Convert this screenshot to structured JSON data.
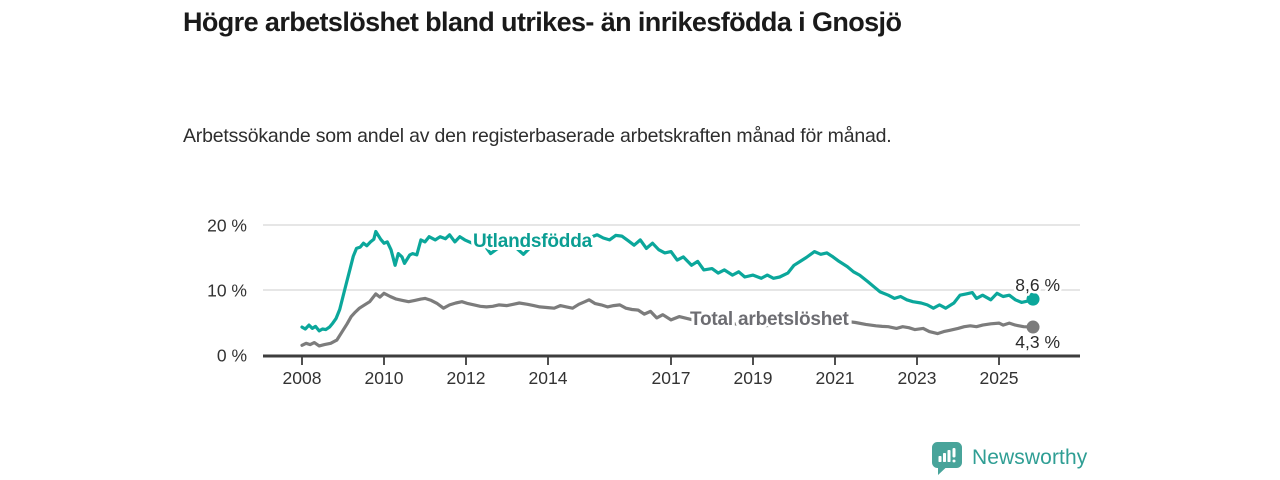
{
  "header": {
    "title": "Högre arbetslöshet bland utrikes- än inrikesfödda i Gnosjö",
    "subtitle": "Arbetssökande som andel av den registerbaserade arbetskraften månad för månad."
  },
  "chart_data": {
    "type": "line",
    "title": "Högre arbetslöshet bland utrikes- än inrikesfödda i Gnosjö",
    "subtitle": "Arbetssökande som andel av den registerbaserade arbetskraften månad för månad.",
    "x_axis": {
      "unit": "year-month",
      "range": [
        2007.05,
        2026.95
      ],
      "ticks": [
        2008,
        2010,
        2012,
        2014,
        2017,
        2019,
        2021,
        2023,
        2025
      ],
      "tick_labels": [
        "2008",
        "2010",
        "2012",
        "2014",
        "2017",
        "2019",
        "2021",
        "2023",
        "2025"
      ]
    },
    "y_axis": {
      "unit": "percent",
      "range": [
        0,
        21.5
      ],
      "ticks": [
        0,
        10,
        20
      ],
      "tick_labels": [
        "0 %",
        "10 %",
        "20 %"
      ],
      "grid": true
    },
    "colors": {
      "grid": "#d6d6d6",
      "axis": "#3d3d3d",
      "tick_text": "#333333",
      "end_label_text": "#2b2b2b"
    },
    "series": [
      {
        "name": "Utlandsfödda",
        "color": "#0ba79b",
        "label_color": "#0b9e93",
        "end_value": 8.6,
        "end_label": "8,6 %",
        "points": [
          [
            2008.0,
            4.3
          ],
          [
            2008.08,
            4.0
          ],
          [
            2008.17,
            4.6
          ],
          [
            2008.25,
            4.1
          ],
          [
            2008.33,
            4.4
          ],
          [
            2008.42,
            3.7
          ],
          [
            2008.5,
            4.0
          ],
          [
            2008.58,
            3.9
          ],
          [
            2008.67,
            4.3
          ],
          [
            2008.75,
            4.9
          ],
          [
            2008.83,
            5.6
          ],
          [
            2008.92,
            7.0
          ],
          [
            2009.0,
            9.0
          ],
          [
            2009.08,
            11.0
          ],
          [
            2009.17,
            13.2
          ],
          [
            2009.25,
            15.2
          ],
          [
            2009.33,
            16.4
          ],
          [
            2009.42,
            16.6
          ],
          [
            2009.5,
            17.2
          ],
          [
            2009.58,
            16.8
          ],
          [
            2009.67,
            17.4
          ],
          [
            2009.75,
            17.8
          ],
          [
            2009.8,
            19.0
          ],
          [
            2009.92,
            17.8
          ],
          [
            2010.0,
            17.2
          ],
          [
            2010.08,
            17.4
          ],
          [
            2010.17,
            16.2
          ],
          [
            2010.27,
            13.8
          ],
          [
            2010.35,
            15.6
          ],
          [
            2010.44,
            15.1
          ],
          [
            2010.5,
            14.1
          ],
          [
            2010.63,
            15.4
          ],
          [
            2010.7,
            15.6
          ],
          [
            2010.8,
            15.4
          ],
          [
            2010.9,
            17.7
          ],
          [
            2011.0,
            17.4
          ],
          [
            2011.1,
            18.2
          ],
          [
            2011.25,
            17.7
          ],
          [
            2011.37,
            18.2
          ],
          [
            2011.5,
            17.9
          ],
          [
            2011.6,
            18.5
          ],
          [
            2011.73,
            17.4
          ],
          [
            2011.85,
            18.2
          ],
          [
            2011.97,
            17.7
          ],
          [
            2012.15,
            17.2
          ],
          [
            2012.3,
            17.5
          ],
          [
            2012.45,
            16.9
          ],
          [
            2012.6,
            15.6
          ],
          [
            2012.75,
            16.3
          ],
          [
            2012.9,
            16.8
          ],
          [
            2013.05,
            16.9
          ],
          [
            2013.2,
            16.6
          ],
          [
            2013.4,
            15.5
          ],
          [
            2013.55,
            16.4
          ],
          [
            2013.7,
            17.0
          ],
          [
            2013.85,
            17.4
          ],
          [
            2014.0,
            18.0
          ],
          [
            2014.15,
            17.6
          ],
          [
            2014.3,
            17.9
          ],
          [
            2014.45,
            18.1
          ],
          [
            2014.6,
            17.2
          ],
          [
            2014.75,
            16.7
          ],
          [
            2014.9,
            17.5
          ],
          [
            2015.0,
            18.0
          ],
          [
            2015.2,
            18.5
          ],
          [
            2015.35,
            18.0
          ],
          [
            2015.5,
            17.7
          ],
          [
            2015.65,
            18.4
          ],
          [
            2015.8,
            18.3
          ],
          [
            2015.95,
            17.6
          ],
          [
            2016.1,
            16.9
          ],
          [
            2016.25,
            17.7
          ],
          [
            2016.4,
            16.4
          ],
          [
            2016.55,
            17.2
          ],
          [
            2016.7,
            16.2
          ],
          [
            2016.85,
            15.7
          ],
          [
            2017.0,
            15.9
          ],
          [
            2017.15,
            14.6
          ],
          [
            2017.3,
            15.1
          ],
          [
            2017.5,
            13.8
          ],
          [
            2017.65,
            14.4
          ],
          [
            2017.8,
            13.1
          ],
          [
            2018.0,
            13.3
          ],
          [
            2018.15,
            12.6
          ],
          [
            2018.3,
            13.1
          ],
          [
            2018.5,
            12.3
          ],
          [
            2018.65,
            12.8
          ],
          [
            2018.8,
            12.0
          ],
          [
            2019.0,
            12.3
          ],
          [
            2019.2,
            11.8
          ],
          [
            2019.35,
            12.3
          ],
          [
            2019.5,
            11.8
          ],
          [
            2019.65,
            12.0
          ],
          [
            2019.85,
            12.6
          ],
          [
            2020.0,
            13.8
          ],
          [
            2020.15,
            14.4
          ],
          [
            2020.3,
            15.0
          ],
          [
            2020.5,
            15.9
          ],
          [
            2020.65,
            15.5
          ],
          [
            2020.8,
            15.7
          ],
          [
            2020.95,
            15.1
          ],
          [
            2021.1,
            14.4
          ],
          [
            2021.3,
            13.6
          ],
          [
            2021.45,
            12.8
          ],
          [
            2021.6,
            12.3
          ],
          [
            2021.8,
            11.3
          ],
          [
            2021.95,
            10.5
          ],
          [
            2022.1,
            9.7
          ],
          [
            2022.3,
            9.2
          ],
          [
            2022.45,
            8.7
          ],
          [
            2022.6,
            9.0
          ],
          [
            2022.75,
            8.5
          ],
          [
            2022.9,
            8.2
          ],
          [
            2023.1,
            8.0
          ],
          [
            2023.25,
            7.7
          ],
          [
            2023.4,
            7.2
          ],
          [
            2023.55,
            7.7
          ],
          [
            2023.7,
            7.2
          ],
          [
            2023.9,
            8.0
          ],
          [
            2024.05,
            9.2
          ],
          [
            2024.2,
            9.4
          ],
          [
            2024.35,
            9.6
          ],
          [
            2024.45,
            8.7
          ],
          [
            2024.6,
            9.2
          ],
          [
            2024.8,
            8.5
          ],
          [
            2024.95,
            9.5
          ],
          [
            2025.1,
            9.0
          ],
          [
            2025.25,
            9.2
          ],
          [
            2025.4,
            8.5
          ],
          [
            2025.55,
            8.1
          ],
          [
            2025.7,
            8.3
          ],
          [
            2025.83,
            8.6
          ]
        ]
      },
      {
        "name": "Total arbetslöshet",
        "color": "#7c7c7c",
        "label_color": "#6d6d72",
        "end_value": 4.3,
        "end_label": "4,3 %",
        "points": [
          [
            2008.0,
            1.5
          ],
          [
            2008.1,
            1.8
          ],
          [
            2008.2,
            1.6
          ],
          [
            2008.3,
            1.9
          ],
          [
            2008.42,
            1.4
          ],
          [
            2008.55,
            1.6
          ],
          [
            2008.7,
            1.8
          ],
          [
            2008.85,
            2.3
          ],
          [
            2009.0,
            3.8
          ],
          [
            2009.1,
            4.8
          ],
          [
            2009.2,
            5.9
          ],
          [
            2009.3,
            6.6
          ],
          [
            2009.4,
            7.2
          ],
          [
            2009.55,
            7.8
          ],
          [
            2009.65,
            8.2
          ],
          [
            2009.8,
            9.4
          ],
          [
            2009.9,
            8.9
          ],
          [
            2010.0,
            9.5
          ],
          [
            2010.15,
            9.0
          ],
          [
            2010.3,
            8.6
          ],
          [
            2010.45,
            8.4
          ],
          [
            2010.6,
            8.2
          ],
          [
            2010.75,
            8.4
          ],
          [
            2010.9,
            8.6
          ],
          [
            2011.0,
            8.7
          ],
          [
            2011.15,
            8.4
          ],
          [
            2011.3,
            7.9
          ],
          [
            2011.45,
            7.2
          ],
          [
            2011.6,
            7.7
          ],
          [
            2011.75,
            8.0
          ],
          [
            2011.9,
            8.2
          ],
          [
            2012.05,
            7.9
          ],
          [
            2012.2,
            7.7
          ],
          [
            2012.35,
            7.5
          ],
          [
            2012.5,
            7.4
          ],
          [
            2012.65,
            7.5
          ],
          [
            2012.8,
            7.7
          ],
          [
            2013.0,
            7.6
          ],
          [
            2013.15,
            7.8
          ],
          [
            2013.3,
            8.0
          ],
          [
            2013.5,
            7.8
          ],
          [
            2013.65,
            7.6
          ],
          [
            2013.8,
            7.4
          ],
          [
            2014.0,
            7.3
          ],
          [
            2014.15,
            7.2
          ],
          [
            2014.3,
            7.6
          ],
          [
            2014.45,
            7.4
          ],
          [
            2014.6,
            7.2
          ],
          [
            2014.75,
            7.8
          ],
          [
            2014.9,
            8.2
          ],
          [
            2015.0,
            8.5
          ],
          [
            2015.15,
            7.9
          ],
          [
            2015.3,
            7.7
          ],
          [
            2015.45,
            7.4
          ],
          [
            2015.6,
            7.6
          ],
          [
            2015.75,
            7.7
          ],
          [
            2015.9,
            7.2
          ],
          [
            2016.05,
            7.0
          ],
          [
            2016.2,
            6.9
          ],
          [
            2016.35,
            6.3
          ],
          [
            2016.5,
            6.7
          ],
          [
            2016.65,
            5.7
          ],
          [
            2016.8,
            6.2
          ],
          [
            2017.0,
            5.4
          ],
          [
            2017.2,
            5.9
          ],
          [
            2017.4,
            5.6
          ],
          [
            2017.6,
            5.3
          ],
          [
            2017.8,
            5.2
          ],
          [
            2018.0,
            5.1
          ],
          [
            2018.25,
            4.9
          ],
          [
            2018.5,
            4.8
          ],
          [
            2018.75,
            4.7
          ],
          [
            2019.0,
            4.6
          ],
          [
            2019.25,
            4.5
          ],
          [
            2019.5,
            4.6
          ],
          [
            2019.75,
            4.8
          ],
          [
            2020.0,
            5.1
          ],
          [
            2020.25,
            5.6
          ],
          [
            2020.5,
            5.9
          ],
          [
            2020.75,
            5.7
          ],
          [
            2021.0,
            5.5
          ],
          [
            2021.25,
            5.2
          ],
          [
            2021.5,
            5.0
          ],
          [
            2021.75,
            4.7
          ],
          [
            2022.0,
            4.5
          ],
          [
            2022.15,
            4.4
          ],
          [
            2022.3,
            4.35
          ],
          [
            2022.5,
            4.1
          ],
          [
            2022.65,
            4.35
          ],
          [
            2022.8,
            4.2
          ],
          [
            2022.95,
            3.9
          ],
          [
            2023.15,
            4.1
          ],
          [
            2023.3,
            3.6
          ],
          [
            2023.5,
            3.3
          ],
          [
            2023.65,
            3.6
          ],
          [
            2023.8,
            3.8
          ],
          [
            2024.0,
            4.1
          ],
          [
            2024.15,
            4.35
          ],
          [
            2024.3,
            4.5
          ],
          [
            2024.45,
            4.35
          ],
          [
            2024.6,
            4.6
          ],
          [
            2024.8,
            4.8
          ],
          [
            2025.0,
            4.9
          ],
          [
            2025.1,
            4.6
          ],
          [
            2025.25,
            4.9
          ],
          [
            2025.4,
            4.6
          ],
          [
            2025.6,
            4.35
          ],
          [
            2025.83,
            4.3
          ]
        ]
      }
    ],
    "legend_position": "inline-labels"
  },
  "logo": {
    "text": "Newsworthy",
    "text_color": "#2f9e94",
    "icon_color": "#48a49a",
    "icon_name": "newsworthy-chart-bubble-icon"
  }
}
